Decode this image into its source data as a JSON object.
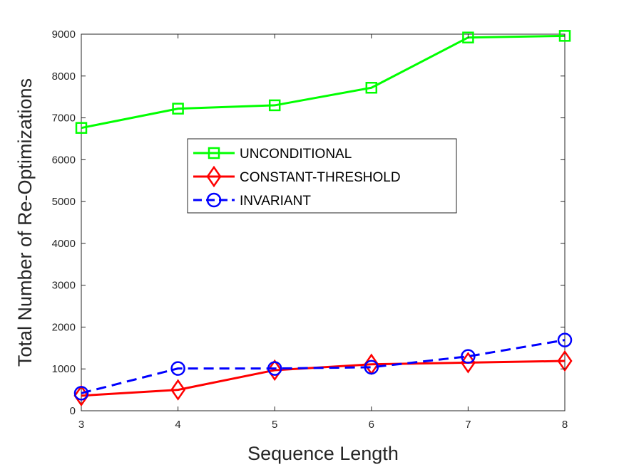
{
  "chart_data": {
    "type": "line",
    "title": "",
    "xlabel": "Sequence Length",
    "ylabel": "Total Number of Re-Optimizations",
    "xlim": [
      3,
      8
    ],
    "ylim": [
      0,
      9000
    ],
    "xticks": [
      3,
      4,
      5,
      6,
      7,
      8
    ],
    "yticks": [
      0,
      1000,
      2000,
      3000,
      4000,
      5000,
      6000,
      7000,
      8000,
      9000
    ],
    "grid": false,
    "legend_position": "center-left",
    "x": [
      3,
      4,
      5,
      6,
      7,
      8
    ],
    "series": [
      {
        "name": "UNCONDITIONAL",
        "values": [
          6760,
          7220,
          7300,
          7720,
          8920,
          8960
        ],
        "color": "#00ff00",
        "marker": "square",
        "line_style": "solid"
      },
      {
        "name": "CONSTANT-THRESHOLD",
        "values": [
          360,
          500,
          970,
          1110,
          1150,
          1190
        ],
        "color": "#ff0000",
        "marker": "diamond",
        "line_style": "solid"
      },
      {
        "name": "INVARIANT",
        "values": [
          420,
          1010,
          1010,
          1040,
          1300,
          1690
        ],
        "color": "#0000ff",
        "marker": "circle",
        "line_style": "dashed"
      }
    ]
  }
}
